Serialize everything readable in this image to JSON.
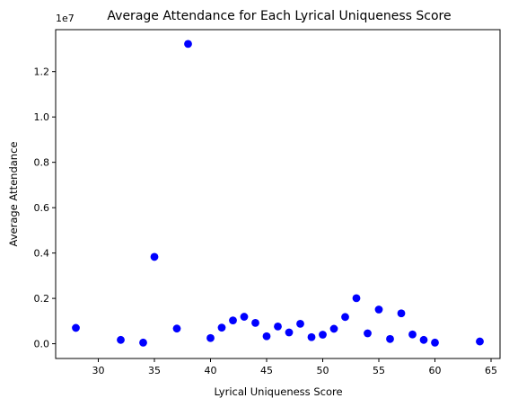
{
  "chart_data": {
    "type": "scatter",
    "title": "Average Attendance for Each Lyrical Uniqueness Score",
    "xlabel": "Lyrical Uniqueness Score",
    "ylabel": "Average Attendance",
    "y_offset_label": "1e7",
    "xlim": [
      26.2,
      65.8
    ],
    "ylim": [
      -0.065,
      1.385
    ],
    "x_ticks": [
      30,
      35,
      40,
      45,
      50,
      55,
      60,
      65
    ],
    "x_tick_labels": [
      "30",
      "35",
      "40",
      "45",
      "50",
      "55",
      "60",
      "65"
    ],
    "y_ticks": [
      0.0,
      0.2,
      0.4,
      0.6,
      0.8,
      1.0,
      1.2
    ],
    "y_tick_labels": [
      "0.0",
      "0.2",
      "0.4",
      "0.6",
      "0.8",
      "1.0",
      "1.2"
    ],
    "grid": false,
    "marker_color": "#0000ff",
    "points": [
      {
        "x": 28,
        "y": 0.07
      },
      {
        "x": 32,
        "y": 0.017
      },
      {
        "x": 34,
        "y": 0.005
      },
      {
        "x": 35,
        "y": 0.383
      },
      {
        "x": 37,
        "y": 0.067
      },
      {
        "x": 38,
        "y": 1.322
      },
      {
        "x": 40,
        "y": 0.025
      },
      {
        "x": 41,
        "y": 0.071
      },
      {
        "x": 42,
        "y": 0.103
      },
      {
        "x": 43,
        "y": 0.119
      },
      {
        "x": 44,
        "y": 0.092
      },
      {
        "x": 45,
        "y": 0.033
      },
      {
        "x": 46,
        "y": 0.076
      },
      {
        "x": 47,
        "y": 0.05
      },
      {
        "x": 48,
        "y": 0.088
      },
      {
        "x": 49,
        "y": 0.029
      },
      {
        "x": 50,
        "y": 0.04
      },
      {
        "x": 51,
        "y": 0.066
      },
      {
        "x": 52,
        "y": 0.118
      },
      {
        "x": 53,
        "y": 0.201
      },
      {
        "x": 54,
        "y": 0.046
      },
      {
        "x": 55,
        "y": 0.151
      },
      {
        "x": 56,
        "y": 0.021
      },
      {
        "x": 57,
        "y": 0.134
      },
      {
        "x": 58,
        "y": 0.041
      },
      {
        "x": 59,
        "y": 0.017
      },
      {
        "x": 60,
        "y": 0.005
      },
      {
        "x": 64,
        "y": 0.01
      }
    ]
  }
}
